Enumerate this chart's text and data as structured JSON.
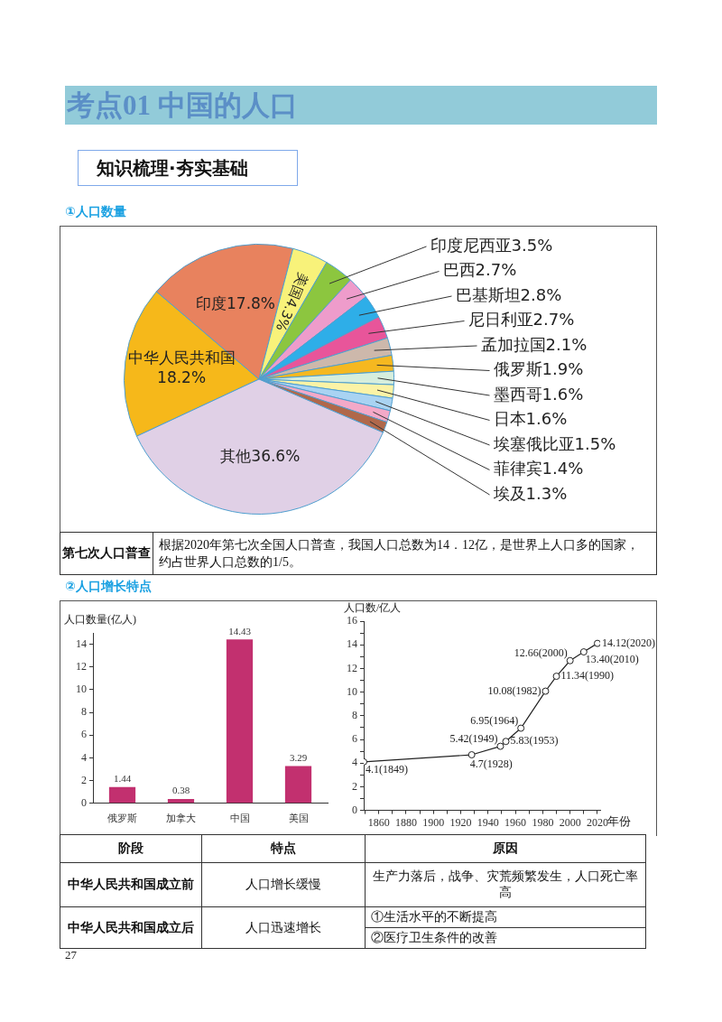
{
  "chart_data": [
    {
      "type": "other",
      "title": "考点01  中国的人口",
      "subtitle": "知识梳理·夯实基础"
    },
    {
      "type": "pie",
      "title": "①人口数量",
      "categories": [
        "中华人民共和国",
        "印度",
        "美国",
        "印度尼西亚",
        "巴西",
        "巴基斯坦",
        "尼日利亚",
        "孟加拉国",
        "俄罗斯",
        "墨西哥",
        "日本",
        "埃塞俄比亚",
        "菲律宾",
        "埃及",
        "其他"
      ],
      "values": [
        18.2,
        17.8,
        4.3,
        3.5,
        2.7,
        2.8,
        2.7,
        2.1,
        1.9,
        1.6,
        1.6,
        1.5,
        1.4,
        1.3,
        36.6
      ],
      "colors": [
        "#f6b81a",
        "#e8825e",
        "#f8f27a",
        "#8cc63f",
        "#ee9ccb",
        "#2eaee8",
        "#e8559a",
        "#cdb8ab",
        "#f5b820",
        "#d6eedd",
        "#fbf3a6",
        "#a9d3f2",
        "#f3a9c8",
        "#b0684a",
        "#e0d0e6"
      ],
      "value_labels": [
        "18.2%",
        "17.8%",
        "4.3%",
        "3.5%",
        "2.7%",
        "2.8%",
        "2.7%",
        "2.1%",
        "1.9%",
        "1.6%",
        "1.6%",
        "1.5%",
        "1.4%",
        "1.3%",
        "36.6%"
      ],
      "annotations": [
        "第七次人口普查",
        "根据2020年第七次全国人口普查，我国人口总数为14．12亿，是世界上人口多的国家，约占世界人口总数的1/5。"
      ]
    },
    {
      "type": "bar",
      "title": "②人口增长特点",
      "ylabel": "人口数量(亿人)",
      "categories": [
        "俄罗斯",
        "加拿大",
        "中国",
        "美国"
      ],
      "values": [
        1.44,
        0.38,
        14.43,
        3.29
      ],
      "color": "#c2306f",
      "ylim": [
        0,
        15
      ],
      "yticks": [
        0,
        2,
        4,
        6,
        8,
        10,
        12,
        14
      ],
      "data_labels": true
    },
    {
      "type": "line",
      "ylabel": "人口数/亿人",
      "xlabel": "年份",
      "x": [
        1849,
        1928,
        1949,
        1953,
        1964,
        1982,
        1990,
        2000,
        2010,
        2020
      ],
      "values": [
        4.1,
        4.7,
        5.42,
        5.83,
        6.95,
        10.08,
        11.34,
        12.66,
        13.4,
        14.12
      ],
      "value_labels": [
        "4.1(1849)",
        "4.7(1928)",
        "5.42(1949)",
        "5.83(1953)",
        "6.95(1964)",
        "10.08(1982)",
        "11.34(1990)",
        "12.66(2000)",
        "13.40(2010)",
        "14.12(2020)"
      ],
      "color": "#222222",
      "marker": "circle",
      "xlim": [
        1849,
        2022
      ],
      "xticks": [
        {
          "value": 1850,
          "label": null
        },
        1860,
        {
          "value": 1870,
          "label": null
        },
        1880,
        {
          "value": 1890,
          "label": null
        },
        1900,
        {
          "value": 1910,
          "label": null
        },
        1920,
        {
          "value": 1930,
          "label": null
        },
        1940,
        {
          "value": 1950,
          "label": null
        },
        1960,
        {
          "value": 1970,
          "label": null
        },
        1980,
        {
          "value": 1990,
          "label": null
        },
        2000,
        {
          "value": 2010,
          "label": null
        },
        2020
      ],
      "ylim": [
        0,
        16
      ],
      "yticks": [
        0,
        {
          "value": 1,
          "label": null
        },
        2,
        {
          "value": 3,
          "label": null
        },
        4,
        {
          "value": 5,
          "label": null
        },
        6,
        {
          "value": 7,
          "label": null
        },
        8,
        {
          "value": 9,
          "label": null
        },
        10,
        {
          "value": 11,
          "label": null
        },
        12,
        {
          "value": 13,
          "label": null
        },
        14,
        {
          "value": 15,
          "label": null
        },
        16
      ]
    },
    {
      "type": "other",
      "annotations": [
        "阶段",
        "特点",
        "原因",
        "中华人民共和国成立前",
        "人口增长缓慢",
        "生产力落后，战争、灾荒频繁发生，人口死亡率高",
        "中华人民共和国成立后",
        "人口迅速增长",
        "①生活水平的不断提高",
        "②医疗卫生条件的改善",
        "27"
      ]
    }
  ]
}
